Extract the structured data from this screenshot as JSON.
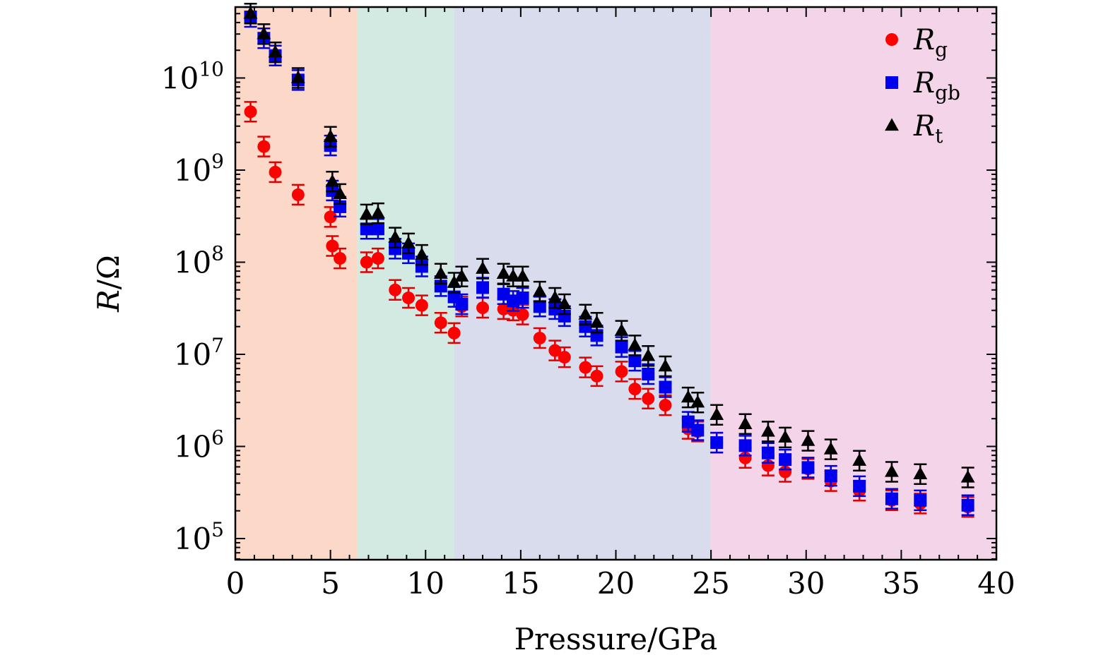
{
  "chart_data": {
    "type": "scatter",
    "xlabel": "Pressure/GPa",
    "ylabel_var": "R",
    "ylabel_unit": "/Ω",
    "xlim": [
      0,
      40
    ],
    "ylim_log10": [
      4.77,
      10.77
    ],
    "y_scale": "log",
    "x_ticks": [
      0,
      5,
      10,
      15,
      20,
      25,
      30,
      35,
      40
    ],
    "y_ticks": [
      {
        "base": "10",
        "exp": "5",
        "value": 5
      },
      {
        "base": "10",
        "exp": "6",
        "value": 6
      },
      {
        "base": "10",
        "exp": "7",
        "value": 7
      },
      {
        "base": "10",
        "exp": "8",
        "value": 8
      },
      {
        "base": "10",
        "exp": "9",
        "value": 9
      },
      {
        "base": "10",
        "exp": "10",
        "value": 10
      }
    ],
    "regions": [
      {
        "from": 0,
        "to": 6.4,
        "color": "#fcd8c8"
      },
      {
        "from": 6.4,
        "to": 11.5,
        "color": "#d2eae2"
      },
      {
        "from": 11.5,
        "to": 25.0,
        "color": "#d8dcec"
      },
      {
        "from": 25.0,
        "to": 40,
        "color": "#f4d4e8"
      }
    ],
    "legend": {
      "position": "top-right"
    },
    "series": [
      {
        "name": "R_g",
        "label_main": "R",
        "label_sub": "g",
        "marker": "circle",
        "color": "#ff0000",
        "error_color": "#e00000",
        "points": [
          [
            0.8,
            4300000000.0
          ],
          [
            1.5,
            1800000000.0
          ],
          [
            2.1,
            950000000.0
          ],
          [
            3.3,
            540000000.0
          ],
          [
            5.0,
            310000000.0
          ],
          [
            5.1,
            150000000.0
          ],
          [
            5.5,
            110000000.0
          ],
          [
            6.9,
            100000000.0
          ],
          [
            7.5,
            110000000.0
          ],
          [
            8.4,
            50000000.0
          ],
          [
            9.1,
            41000000.0
          ],
          [
            9.8,
            34000000.0
          ],
          [
            10.8,
            22000000.0
          ],
          [
            11.5,
            17000000.0
          ],
          [
            11.9,
            33000000.0
          ],
          [
            13.0,
            32000000.0
          ],
          [
            14.1,
            31000000.0
          ],
          [
            14.6,
            30000000.0
          ],
          [
            15.1,
            27000000.0
          ],
          [
            16.0,
            15000000.0
          ],
          [
            16.8,
            11000000.0
          ],
          [
            17.3,
            9300000.0
          ],
          [
            18.4,
            7200000.0
          ],
          [
            19.0,
            5800000.0
          ],
          [
            20.3,
            6500000.0
          ],
          [
            21.0,
            4200000.0
          ],
          [
            21.7,
            3300000.0
          ],
          [
            22.6,
            2800000.0
          ],
          [
            23.8,
            1550000.0
          ],
          [
            24.3,
            1450000.0
          ],
          [
            25.3,
            1100000.0
          ],
          [
            26.8,
            750000.0
          ],
          [
            28.0,
            620000.0
          ],
          [
            28.9,
            530000.0
          ],
          [
            30.1,
            570000.0
          ],
          [
            31.3,
            420000.0
          ],
          [
            32.8,
            330000.0
          ],
          [
            34.5,
            260000.0
          ],
          [
            36.0,
            240000.0
          ],
          [
            38.5,
            220000.0
          ]
        ]
      },
      {
        "name": "R_gb",
        "label_main": "R",
        "label_sub": "gb",
        "marker": "square",
        "color": "#0000ee",
        "error_color": "#0000dd",
        "points": [
          [
            0.8,
            46000000000.0
          ],
          [
            1.5,
            27000000000.0
          ],
          [
            2.1,
            17500000000.0
          ],
          [
            3.3,
            9500000000.0
          ],
          [
            5.0,
            1850000000.0
          ],
          [
            5.1,
            600000000.0
          ],
          [
            5.5,
            400000000.0
          ],
          [
            6.9,
            230000000.0
          ],
          [
            7.5,
            230000000.0
          ],
          [
            8.4,
            140000000.0
          ],
          [
            9.1,
            125000000.0
          ],
          [
            9.8,
            90000000.0
          ],
          [
            10.8,
            55000000.0
          ],
          [
            11.5,
            42000000.0
          ],
          [
            11.9,
            35000000.0
          ],
          [
            13.0,
            53000000.0
          ],
          [
            14.1,
            45000000.0
          ],
          [
            14.6,
            38000000.0
          ],
          [
            15.1,
            41000000.0
          ],
          [
            16.0,
            33000000.0
          ],
          [
            16.8,
            31000000.0
          ],
          [
            17.3,
            26000000.0
          ],
          [
            18.4,
            20000000.0
          ],
          [
            19.0,
            16000000.0
          ],
          [
            20.3,
            12000000.0
          ],
          [
            21.0,
            8500000.0
          ],
          [
            21.7,
            6100000.0
          ],
          [
            22.6,
            4400000.0
          ],
          [
            23.8,
            1850000.0
          ],
          [
            24.3,
            1500000.0
          ],
          [
            25.3,
            1100000.0
          ],
          [
            26.8,
            1020000.0
          ],
          [
            28.0,
            850000.0
          ],
          [
            28.9,
            720000.0
          ],
          [
            30.1,
            590000.0
          ],
          [
            31.3,
            480000.0
          ],
          [
            32.8,
            370000.0
          ],
          [
            34.5,
            270000.0
          ],
          [
            36.0,
            260000.0
          ],
          [
            38.5,
            230000.0
          ]
        ]
      },
      {
        "name": "R_t",
        "label_main": "R",
        "label_sub": "t",
        "marker": "triangle",
        "color": "#000000",
        "error_color": "#000000",
        "points": [
          [
            0.8,
            50000000000.0
          ],
          [
            1.5,
            30000000000.0
          ],
          [
            2.1,
            19000000000.0
          ],
          [
            3.3,
            10000000000.0
          ],
          [
            5.0,
            2300000000.0
          ],
          [
            5.1,
            750000000.0
          ],
          [
            5.5,
            550000000.0
          ],
          [
            6.9,
            330000000.0
          ],
          [
            7.5,
            340000000.0
          ],
          [
            8.4,
            185000000.0
          ],
          [
            9.1,
            160000000.0
          ],
          [
            9.8,
            120000000.0
          ],
          [
            10.8,
            75000000.0
          ],
          [
            11.5,
            60000000.0
          ],
          [
            11.9,
            70000000.0
          ],
          [
            13.0,
            85000000.0
          ],
          [
            14.1,
            75000000.0
          ],
          [
            14.6,
            70000000.0
          ],
          [
            15.1,
            70000000.0
          ],
          [
            16.0,
            48000000.0
          ],
          [
            16.8,
            41000000.0
          ],
          [
            17.3,
            35000000.0
          ],
          [
            18.4,
            27000000.0
          ],
          [
            19.0,
            22000000.0
          ],
          [
            20.3,
            18000000.0
          ],
          [
            21.0,
            12500000.0
          ],
          [
            21.7,
            9600000.0
          ],
          [
            22.6,
            7400000.0
          ],
          [
            23.8,
            3400000.0
          ],
          [
            24.3,
            3000000.0
          ],
          [
            25.3,
            2200000.0
          ],
          [
            26.8,
            1750000.0
          ],
          [
            28.0,
            1450000.0
          ],
          [
            28.9,
            1250000.0
          ],
          [
            30.1,
            1150000.0
          ],
          [
            31.3,
            930000.0
          ],
          [
            32.8,
            700000.0
          ],
          [
            34.5,
            530000.0
          ],
          [
            36.0,
            500000.0
          ],
          [
            38.5,
            460000.0
          ]
        ]
      }
    ]
  }
}
